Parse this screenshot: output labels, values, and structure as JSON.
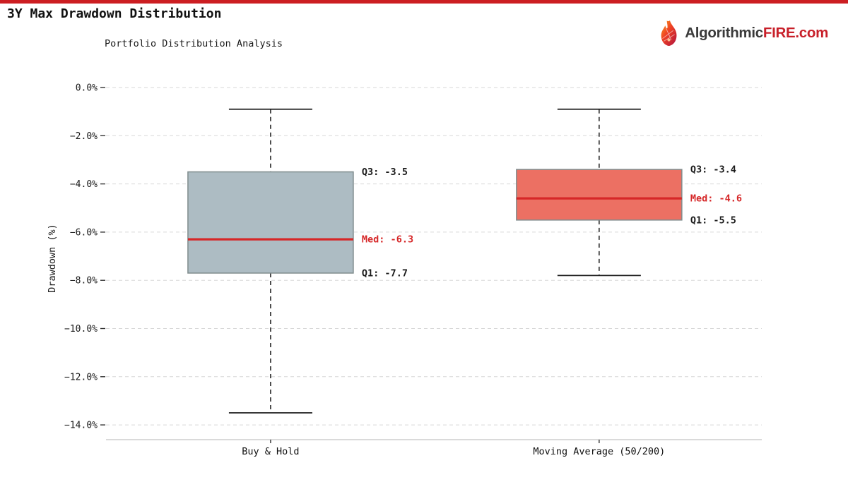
{
  "top_bar_color": "#cc1e22",
  "page": {
    "title": "3Y Max Drawdown Distribution",
    "subtitle": "Portfolio Distribution Analysis"
  },
  "brand": {
    "prefix": "Algorithmic",
    "accent": "FIRE",
    "suffix": ".com",
    "accent_color": "#c8202a",
    "text_color": "#3a3a3a",
    "icon": "fire-icon"
  },
  "chart_data": {
    "type": "boxplot",
    "title": "Portfolio Distribution Analysis",
    "ylabel": "Drawdown (%)",
    "ylim": [
      -14.6,
      0.4
    ],
    "grid": "horizontal-dashed",
    "legend": "none",
    "yticks": [
      {
        "value": 0,
        "label": "0.0%"
      },
      {
        "value": -2,
        "label": "−2.0%"
      },
      {
        "value": -4,
        "label": "−4.0%"
      },
      {
        "value": -6,
        "label": "−6.0%"
      },
      {
        "value": -8,
        "label": "−8.0%"
      },
      {
        "value": -10,
        "label": "−10.0%"
      },
      {
        "value": -12,
        "label": "−12.0%"
      },
      {
        "value": -14,
        "label": "−14.0%"
      }
    ],
    "categories": [
      "Buy & Hold",
      "Moving Average (50/200)"
    ],
    "series": [
      {
        "name": "Buy & Hold",
        "whisker_high": -0.9,
        "q3": -3.5,
        "median": -6.3,
        "q1": -7.7,
        "whisker_low": -13.5,
        "box_color": "#adbcc3",
        "labels": {
          "q3": "Q3: -3.5",
          "median": "Med: -6.3",
          "q1": "Q1: -7.7"
        }
      },
      {
        "name": "Moving Average (50/200)",
        "whisker_high": -0.9,
        "q3": -3.4,
        "median": -4.6,
        "q1": -5.5,
        "whisker_low": -7.8,
        "box_color": "#ec7063",
        "labels": {
          "q3": "Q3: -3.4",
          "median": "Med: -4.6",
          "q1": "Q1: -5.5"
        }
      }
    ],
    "median_color": "#d62728",
    "annotation_color": "#1a1a1a",
    "box_border_color": "#7f8c8d",
    "whisker_color": "#1c1c1c"
  }
}
